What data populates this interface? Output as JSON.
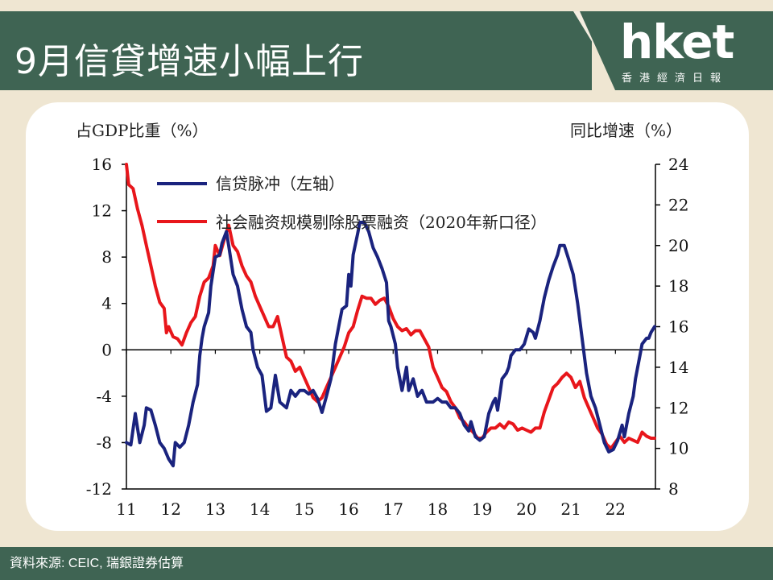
{
  "header": {
    "title": "9月信貸增速小幅上行"
  },
  "logo": {
    "brand": "hket",
    "tagline": "香港經濟日報"
  },
  "footer": {
    "source": "資料來源: CEIC, 瑞銀證券估算"
  },
  "colors": {
    "header_bg": "#3f6453",
    "page_bg": "#efe6d2",
    "series_1": "#1a237e",
    "series_2": "#e8161b"
  },
  "chart_data": {
    "type": "line",
    "left_axis_label": "占GDP比重（%）",
    "right_axis_label": "同比增速（%）",
    "y_left": {
      "min": -12,
      "max": 16,
      "ticks": [
        "16",
        "12",
        "8",
        "4",
        "0",
        "-4",
        "-8",
        "-12"
      ],
      "tick_values": [
        16,
        12,
        8,
        4,
        0,
        -4,
        -8,
        -12
      ]
    },
    "y_right": {
      "min": 8,
      "max": 24,
      "ticks": [
        "24",
        "22",
        "20",
        "18",
        "16",
        "14",
        "12",
        "10",
        "8"
      ],
      "tick_values": [
        24,
        22,
        20,
        18,
        16,
        14,
        12,
        10,
        8
      ]
    },
    "x": {
      "min": 2011,
      "max": 2022.9,
      "ticks": [
        "11",
        "12",
        "13",
        "14",
        "15",
        "16",
        "17",
        "18",
        "19",
        "20",
        "21",
        "22"
      ],
      "tick_values": [
        2011,
        2012,
        2013,
        2014,
        2015,
        2016,
        2017,
        2018,
        2019,
        2020,
        2021,
        2022
      ]
    },
    "legend": [
      "信贷脉冲（左轴）",
      "社会融资规模剔除股票融资（2020年新口径）"
    ],
    "series": [
      {
        "name": "信贷脉冲（左轴）",
        "axis": "left",
        "points": [
          [
            2011.0,
            -8.0
          ],
          [
            2011.1,
            -8.2
          ],
          [
            2011.2,
            -5.5
          ],
          [
            2011.3,
            -8.0
          ],
          [
            2011.4,
            -6.5
          ],
          [
            2011.45,
            -5.0
          ],
          [
            2011.55,
            -5.2
          ],
          [
            2011.65,
            -6.5
          ],
          [
            2011.75,
            -8.0
          ],
          [
            2011.85,
            -8.5
          ],
          [
            2011.95,
            -9.4
          ],
          [
            2012.05,
            -10.0
          ],
          [
            2012.1,
            -8.0
          ],
          [
            2012.2,
            -8.4
          ],
          [
            2012.3,
            -8.0
          ],
          [
            2012.4,
            -6.5
          ],
          [
            2012.5,
            -4.5
          ],
          [
            2012.6,
            -3.0
          ],
          [
            2012.65,
            -0.5
          ],
          [
            2012.7,
            1.0
          ],
          [
            2012.75,
            2.0
          ],
          [
            2012.85,
            3.2
          ],
          [
            2012.9,
            5.5
          ],
          [
            2013.0,
            8.0
          ],
          [
            2013.1,
            8.2
          ],
          [
            2013.15,
            9.2
          ],
          [
            2013.25,
            10.2
          ],
          [
            2013.3,
            9.0
          ],
          [
            2013.4,
            6.5
          ],
          [
            2013.5,
            5.5
          ],
          [
            2013.6,
            3.5
          ],
          [
            2013.7,
            2.0
          ],
          [
            2013.8,
            1.5
          ],
          [
            2013.85,
            0.0
          ],
          [
            2013.95,
            -1.5
          ],
          [
            2014.05,
            -2.2
          ],
          [
            2014.15,
            -5.3
          ],
          [
            2014.25,
            -5.0
          ],
          [
            2014.35,
            -2.2
          ],
          [
            2014.45,
            -4.5
          ],
          [
            2014.6,
            -5.0
          ],
          [
            2014.7,
            -3.5
          ],
          [
            2014.8,
            -4.0
          ],
          [
            2014.9,
            -3.5
          ],
          [
            2015.0,
            -3.5
          ],
          [
            2015.1,
            -3.8
          ],
          [
            2015.2,
            -3.5
          ],
          [
            2015.3,
            -4.2
          ],
          [
            2015.4,
            -5.4
          ],
          [
            2015.5,
            -4.0
          ],
          [
            2015.6,
            -2.5
          ],
          [
            2015.7,
            0.5
          ],
          [
            2015.8,
            2.5
          ],
          [
            2015.85,
            3.5
          ],
          [
            2015.95,
            3.8
          ],
          [
            2016.0,
            6.5
          ],
          [
            2016.05,
            5.5
          ],
          [
            2016.1,
            8.2
          ],
          [
            2016.2,
            10.0
          ],
          [
            2016.25,
            11.0
          ],
          [
            2016.35,
            11.0
          ],
          [
            2016.45,
            10.2
          ],
          [
            2016.55,
            8.8
          ],
          [
            2016.65,
            8.0
          ],
          [
            2016.75,
            7.0
          ],
          [
            2016.85,
            5.8
          ],
          [
            2016.9,
            2.5
          ],
          [
            2016.95,
            2.0
          ],
          [
            2017.05,
            0.5
          ],
          [
            2017.1,
            -1.5
          ],
          [
            2017.2,
            -3.5
          ],
          [
            2017.3,
            -1.5
          ],
          [
            2017.35,
            -3.5
          ],
          [
            2017.45,
            -2.5
          ],
          [
            2017.55,
            -4.0
          ],
          [
            2017.65,
            -3.5
          ],
          [
            2017.75,
            -4.5
          ],
          [
            2017.9,
            -4.5
          ],
          [
            2018.0,
            -4.2
          ],
          [
            2018.1,
            -4.5
          ],
          [
            2018.2,
            -4.5
          ],
          [
            2018.3,
            -5.0
          ],
          [
            2018.4,
            -5.0
          ],
          [
            2018.5,
            -5.5
          ],
          [
            2018.55,
            -6.0
          ],
          [
            2018.6,
            -6.5
          ],
          [
            2018.7,
            -7.0
          ],
          [
            2018.75,
            -6.2
          ],
          [
            2018.85,
            -7.5
          ],
          [
            2018.95,
            -7.8
          ],
          [
            2019.05,
            -7.5
          ],
          [
            2019.15,
            -5.5
          ],
          [
            2019.25,
            -4.5
          ],
          [
            2019.3,
            -4.2
          ],
          [
            2019.35,
            -5.2
          ],
          [
            2019.45,
            -2.5
          ],
          [
            2019.55,
            -2.0
          ],
          [
            2019.6,
            -1.5
          ],
          [
            2019.65,
            -0.5
          ],
          [
            2019.75,
            0.0
          ],
          [
            2019.85,
            0.0
          ],
          [
            2019.95,
            0.5
          ],
          [
            2020.05,
            1.8
          ],
          [
            2020.15,
            1.5
          ],
          [
            2020.2,
            1.0
          ],
          [
            2020.3,
            2.5
          ],
          [
            2020.4,
            4.5
          ],
          [
            2020.5,
            6.0
          ],
          [
            2020.6,
            7.2
          ],
          [
            2020.7,
            8.2
          ],
          [
            2020.75,
            9.0
          ],
          [
            2020.85,
            9.0
          ],
          [
            2020.95,
            7.8
          ],
          [
            2021.05,
            6.5
          ],
          [
            2021.15,
            4.0
          ],
          [
            2021.25,
            1.0
          ],
          [
            2021.35,
            -2.0
          ],
          [
            2021.45,
            -4.0
          ],
          [
            2021.55,
            -5.0
          ],
          [
            2021.65,
            -6.5
          ],
          [
            2021.75,
            -8.0
          ],
          [
            2021.85,
            -8.8
          ],
          [
            2021.95,
            -8.6
          ],
          [
            2022.05,
            -7.8
          ],
          [
            2022.15,
            -6.5
          ],
          [
            2022.2,
            -7.5
          ],
          [
            2022.3,
            -5.5
          ],
          [
            2022.4,
            -4.0
          ],
          [
            2022.45,
            -2.5
          ],
          [
            2022.55,
            -0.5
          ],
          [
            2022.6,
            0.5
          ],
          [
            2022.7,
            1.0
          ],
          [
            2022.75,
            1.0
          ],
          [
            2022.8,
            1.5
          ],
          [
            2022.88,
            2.0
          ]
        ]
      },
      {
        "name": "社会融资规模剔除股票融资（2020年新口径）",
        "axis": "right",
        "points": [
          [
            2011.0,
            24.0
          ],
          [
            2011.05,
            23.0
          ],
          [
            2011.15,
            22.8
          ],
          [
            2011.25,
            21.8
          ],
          [
            2011.35,
            21.0
          ],
          [
            2011.45,
            20.0
          ],
          [
            2011.55,
            19.0
          ],
          [
            2011.65,
            18.0
          ],
          [
            2011.75,
            17.2
          ],
          [
            2011.85,
            16.9
          ],
          [
            2011.9,
            15.7
          ],
          [
            2011.95,
            16.0
          ],
          [
            2012.05,
            15.5
          ],
          [
            2012.15,
            15.4
          ],
          [
            2012.25,
            15.1
          ],
          [
            2012.35,
            15.7
          ],
          [
            2012.45,
            16.2
          ],
          [
            2012.55,
            16.5
          ],
          [
            2012.65,
            17.5
          ],
          [
            2012.75,
            18.2
          ],
          [
            2012.85,
            18.4
          ],
          [
            2012.95,
            19.0
          ],
          [
            2013.0,
            20.0
          ],
          [
            2013.1,
            19.5
          ],
          [
            2013.2,
            20.3
          ],
          [
            2013.3,
            21.0
          ],
          [
            2013.4,
            20.0
          ],
          [
            2013.5,
            19.7
          ],
          [
            2013.6,
            19.0
          ],
          [
            2013.7,
            18.5
          ],
          [
            2013.8,
            18.2
          ],
          [
            2013.9,
            17.5
          ],
          [
            2014.0,
            17.0
          ],
          [
            2014.1,
            16.5
          ],
          [
            2014.2,
            16.0
          ],
          [
            2014.3,
            16.0
          ],
          [
            2014.4,
            16.5
          ],
          [
            2014.5,
            15.5
          ],
          [
            2014.6,
            14.5
          ],
          [
            2014.7,
            14.3
          ],
          [
            2014.8,
            13.8
          ],
          [
            2014.9,
            14.0
          ],
          [
            2015.0,
            13.5
          ],
          [
            2015.1,
            13.0
          ],
          [
            2015.2,
            12.5
          ],
          [
            2015.3,
            12.3
          ],
          [
            2015.4,
            12.5
          ],
          [
            2015.5,
            13.0
          ],
          [
            2015.6,
            13.5
          ],
          [
            2015.7,
            14.0
          ],
          [
            2015.8,
            14.5
          ],
          [
            2015.9,
            15.0
          ],
          [
            2016.0,
            15.7
          ],
          [
            2016.1,
            16.0
          ],
          [
            2016.2,
            16.8
          ],
          [
            2016.3,
            17.5
          ],
          [
            2016.4,
            17.4
          ],
          [
            2016.5,
            17.4
          ],
          [
            2016.6,
            17.1
          ],
          [
            2016.7,
            17.3
          ],
          [
            2016.8,
            17.4
          ],
          [
            2016.9,
            17.0
          ],
          [
            2017.0,
            16.4
          ],
          [
            2017.1,
            16.0
          ],
          [
            2017.2,
            15.8
          ],
          [
            2017.3,
            15.9
          ],
          [
            2017.4,
            15.6
          ],
          [
            2017.5,
            15.8
          ],
          [
            2017.6,
            15.8
          ],
          [
            2017.7,
            15.4
          ],
          [
            2017.8,
            15.0
          ],
          [
            2017.9,
            14.0
          ],
          [
            2018.0,
            13.5
          ],
          [
            2018.1,
            13.0
          ],
          [
            2018.2,
            12.8
          ],
          [
            2018.3,
            12.3
          ],
          [
            2018.4,
            12.0
          ],
          [
            2018.5,
            11.5
          ],
          [
            2018.6,
            11.3
          ],
          [
            2018.7,
            11.0
          ],
          [
            2018.8,
            10.8
          ],
          [
            2018.9,
            10.5
          ],
          [
            2019.0,
            10.5
          ],
          [
            2019.1,
            10.8
          ],
          [
            2019.2,
            11.0
          ],
          [
            2019.3,
            11.0
          ],
          [
            2019.4,
            11.2
          ],
          [
            2019.5,
            11.0
          ],
          [
            2019.6,
            11.3
          ],
          [
            2019.7,
            11.2
          ],
          [
            2019.8,
            10.9
          ],
          [
            2019.9,
            11.0
          ],
          [
            2020.0,
            10.9
          ],
          [
            2020.1,
            10.8
          ],
          [
            2020.2,
            11.0
          ],
          [
            2020.3,
            11.0
          ],
          [
            2020.4,
            11.8
          ],
          [
            2020.5,
            12.4
          ],
          [
            2020.6,
            13.0
          ],
          [
            2020.7,
            13.2
          ],
          [
            2020.8,
            13.5
          ],
          [
            2020.9,
            13.7
          ],
          [
            2021.0,
            13.5
          ],
          [
            2021.1,
            13.0
          ],
          [
            2021.2,
            13.3
          ],
          [
            2021.3,
            12.5
          ],
          [
            2021.4,
            12.0
          ],
          [
            2021.5,
            11.5
          ],
          [
            2021.6,
            11.0
          ],
          [
            2021.7,
            10.7
          ],
          [
            2021.8,
            10.2
          ],
          [
            2021.9,
            10.0
          ],
          [
            2022.0,
            10.3
          ],
          [
            2022.1,
            10.6
          ],
          [
            2022.2,
            10.3
          ],
          [
            2022.3,
            10.5
          ],
          [
            2022.4,
            10.4
          ],
          [
            2022.5,
            10.3
          ],
          [
            2022.6,
            10.8
          ],
          [
            2022.7,
            10.6
          ],
          [
            2022.8,
            10.5
          ],
          [
            2022.88,
            10.5
          ]
        ]
      }
    ]
  }
}
